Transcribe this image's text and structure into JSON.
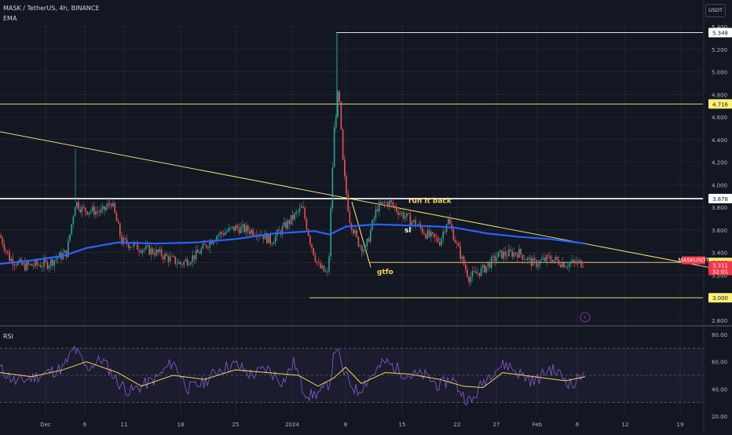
{
  "header": {
    "symbol_line": "MASK / TetherUS, 4h, BINANCE",
    "indicator_main": "EMA",
    "indicator_sub": "RSI",
    "currency_button": "USDT"
  },
  "colors": {
    "background": "#131722",
    "grid": "#2a2e39",
    "up": "#26a69a",
    "down": "#ef5350",
    "ema": "#2962ff",
    "rsi": "#7e57c2",
    "rsi_ma": "#f5d34f",
    "yellow_line": "#fff176",
    "white_line": "#ffffff",
    "price_badge": "#f23645"
  },
  "chart_data": [
    {
      "type": "candlestick",
      "title": "MASK / TetherUS, 4h, BINANCE",
      "x_ticks": [
        "Dec",
        "6",
        "11",
        "18",
        "25",
        "2024",
        "8",
        "15",
        "22",
        "27",
        "Feb",
        "6",
        "12",
        "19"
      ],
      "y_ticks": [
        "5.400",
        "5.200",
        "5.000",
        "4.800",
        "4.600",
        "4.400",
        "4.200",
        "4.000",
        "3.800",
        "3.600",
        "3.400",
        "3.200",
        "3.000",
        "2.800"
      ],
      "ylim": [
        2.8,
        5.45
      ],
      "price_path": [
        [
          0,
          3.55
        ],
        [
          12,
          3.35
        ],
        [
          30,
          3.28
        ],
        [
          60,
          3.3
        ],
        [
          85,
          3.4
        ],
        [
          96,
          3.85
        ],
        [
          105,
          3.78
        ],
        [
          130,
          3.76
        ],
        [
          142,
          3.85
        ],
        [
          155,
          3.5
        ],
        [
          175,
          3.45
        ],
        [
          200,
          3.4
        ],
        [
          230,
          3.3
        ],
        [
          250,
          3.38
        ],
        [
          275,
          3.55
        ],
        [
          300,
          3.62
        ],
        [
          330,
          3.58
        ],
        [
          345,
          3.5
        ],
        [
          365,
          3.65
        ],
        [
          385,
          3.8
        ],
        [
          395,
          3.5
        ],
        [
          405,
          3.28
        ],
        [
          418,
          3.2
        ],
        [
          425,
          4.45
        ],
        [
          431,
          4.85
        ],
        [
          437,
          4.15
        ],
        [
          445,
          3.7
        ],
        [
          455,
          3.5
        ],
        [
          465,
          3.42
        ],
        [
          480,
          3.8
        ],
        [
          495,
          3.85
        ],
        [
          510,
          3.75
        ],
        [
          530,
          3.65
        ],
        [
          545,
          3.55
        ],
        [
          560,
          3.5
        ],
        [
          570,
          3.7
        ],
        [
          585,
          3.4
        ],
        [
          597,
          3.18
        ],
        [
          615,
          3.25
        ],
        [
          635,
          3.38
        ],
        [
          660,
          3.4
        ],
        [
          680,
          3.3
        ],
        [
          700,
          3.35
        ],
        [
          720,
          3.3
        ],
        [
          743,
          3.311
        ]
      ],
      "ema_path": [
        [
          0,
          3.3
        ],
        [
          40,
          3.33
        ],
        [
          80,
          3.37
        ],
        [
          110,
          3.44
        ],
        [
          150,
          3.49
        ],
        [
          200,
          3.48
        ],
        [
          250,
          3.49
        ],
        [
          300,
          3.52
        ],
        [
          350,
          3.57
        ],
        [
          400,
          3.59
        ],
        [
          420,
          3.56
        ],
        [
          440,
          3.63
        ],
        [
          480,
          3.65
        ],
        [
          520,
          3.64
        ],
        [
          560,
          3.63
        ],
        [
          580,
          3.62
        ],
        [
          620,
          3.57
        ],
        [
          660,
          3.54
        ],
        [
          700,
          3.52
        ],
        [
          745,
          3.48
        ]
      ],
      "horizontal_levels": [
        {
          "value": 5.348,
          "label": "5.348",
          "style": "white"
        },
        {
          "value": 4.716,
          "label": "4.716",
          "style": "yellow"
        },
        {
          "value": 3.878,
          "label": "3.878",
          "style": "white"
        },
        {
          "value": 3.313,
          "label": "3.313",
          "style": "yellow"
        },
        {
          "value": 3.0,
          "label": "3.000",
          "style": "yellow"
        }
      ],
      "trendline": {
        "from": [
          0,
          4.47
        ],
        "to": [
          932,
          3.23
        ]
      },
      "current_price": {
        "symbol": "MASKUSDT",
        "value": "3.311",
        "countdown": "32:01"
      },
      "annotations": [
        {
          "text": "run it back",
          "x": 520,
          "y": 3.84,
          "color": "#f5d34f"
        },
        {
          "text": "sl",
          "x": 515,
          "y": 3.58,
          "color": "#ffffff"
        },
        {
          "text": "gtfo",
          "x": 480,
          "y": 3.21,
          "color": "#f5d34f"
        }
      ]
    },
    {
      "type": "line",
      "title": "RSI",
      "y_ticks": [
        "80.00",
        "60.00",
        "40.00",
        "20.00"
      ],
      "ylim": [
        20,
        80
      ],
      "bands": [
        70,
        50,
        30
      ],
      "rsi_path": [
        [
          0,
          55
        ],
        [
          20,
          45
        ],
        [
          40,
          48
        ],
        [
          60,
          52
        ],
        [
          80,
          55
        ],
        [
          95,
          70
        ],
        [
          110,
          55
        ],
        [
          130,
          62
        ],
        [
          150,
          45
        ],
        [
          165,
          38
        ],
        [
          180,
          42
        ],
        [
          200,
          48
        ],
        [
          220,
          60
        ],
        [
          240,
          40
        ],
        [
          260,
          45
        ],
        [
          280,
          55
        ],
        [
          300,
          58
        ],
        [
          320,
          50
        ],
        [
          340,
          55
        ],
        [
          360,
          45
        ],
        [
          375,
          60
        ],
        [
          385,
          40
        ],
        [
          395,
          35
        ],
        [
          410,
          38
        ],
        [
          420,
          45
        ],
        [
          428,
          74
        ],
        [
          435,
          55
        ],
        [
          445,
          45
        ],
        [
          455,
          38
        ],
        [
          470,
          48
        ],
        [
          490,
          60
        ],
        [
          505,
          55
        ],
        [
          520,
          50
        ],
        [
          540,
          50
        ],
        [
          560,
          42
        ],
        [
          575,
          48
        ],
        [
          590,
          35
        ],
        [
          600,
          30
        ],
        [
          615,
          45
        ],
        [
          630,
          55
        ],
        [
          645,
          58
        ],
        [
          660,
          52
        ],
        [
          680,
          45
        ],
        [
          700,
          55
        ],
        [
          715,
          50
        ],
        [
          730,
          42
        ],
        [
          745,
          56
        ]
      ],
      "rsi_ma_path": [
        [
          0,
          52
        ],
        [
          40,
          49
        ],
        [
          80,
          54
        ],
        [
          110,
          60
        ],
        [
          150,
          52
        ],
        [
          180,
          42
        ],
        [
          220,
          50
        ],
        [
          260,
          47
        ],
        [
          300,
          54
        ],
        [
          340,
          52
        ],
        [
          380,
          50
        ],
        [
          405,
          42
        ],
        [
          425,
          48
        ],
        [
          440,
          56
        ],
        [
          460,
          44
        ],
        [
          490,
          52
        ],
        [
          520,
          51
        ],
        [
          560,
          47
        ],
        [
          590,
          42
        ],
        [
          615,
          41
        ],
        [
          640,
          52
        ],
        [
          680,
          49
        ],
        [
          720,
          46
        ],
        [
          745,
          49
        ]
      ]
    }
  ]
}
